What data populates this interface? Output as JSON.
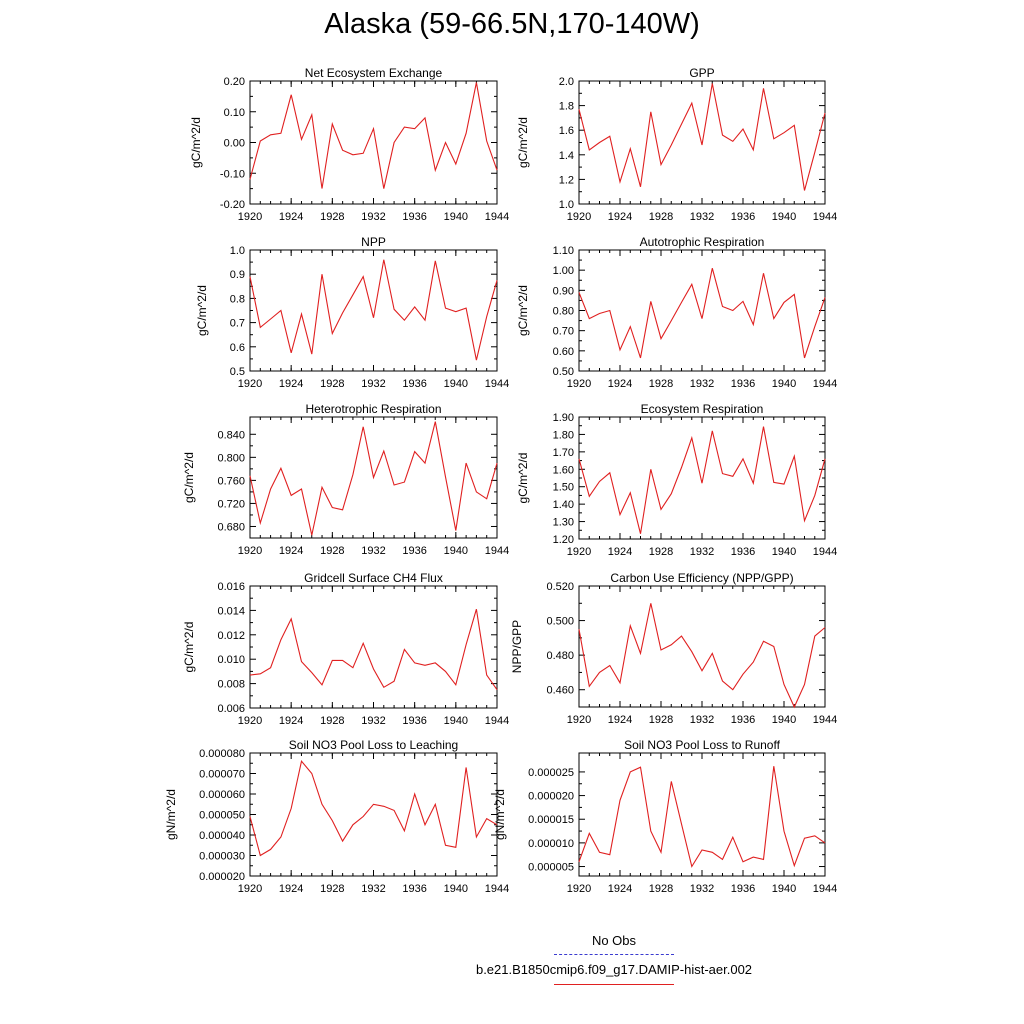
{
  "title": "Alaska (59-66.5N,170-140W)",
  "legend": {
    "obs_label": "No Obs",
    "obs_color": "#3b3bd0",
    "run_label": "b.e21.B1850cmip6.f09_g17.DAMIP-hist-aer.002",
    "run_color": "#e02020"
  },
  "chart_data": [
    {
      "type": "line",
      "title": "Net Ecosystem Exchange",
      "ylabel": "gC/m^2/d",
      "xlim": [
        1920,
        1944
      ],
      "xticks": [
        "1920",
        "1924",
        "1928",
        "1932",
        "1936",
        "1940",
        "1944"
      ],
      "ylim": [
        -0.2,
        0.2
      ],
      "yticks": [
        "0.20",
        "0.10",
        "0.00",
        "-0.10",
        "-0.20"
      ],
      "x": [
        1920,
        1921,
        1922,
        1923,
        1924,
        1925,
        1926,
        1927,
        1928,
        1929,
        1930,
        1931,
        1932,
        1933,
        1934,
        1935,
        1936,
        1937,
        1938,
        1939,
        1940,
        1941,
        1942,
        1943,
        1944
      ],
      "values": [
        -0.12,
        0.005,
        0.025,
        0.03,
        0.155,
        0.01,
        0.09,
        -0.15,
        0.06,
        -0.025,
        -0.04,
        -0.035,
        0.045,
        -0.15,
        0.0,
        0.05,
        0.045,
        0.08,
        -0.09,
        0.0,
        -0.07,
        0.03,
        0.195,
        0.005,
        -0.09
      ]
    },
    {
      "type": "line",
      "title": "GPP",
      "ylabel": "gC/m^2/d",
      "xlim": [
        1920,
        1944
      ],
      "xticks": [
        "1920",
        "1924",
        "1928",
        "1932",
        "1936",
        "1940",
        "1944"
      ],
      "ylim": [
        1.0,
        2.0
      ],
      "yticks": [
        "2.0",
        "1.8",
        "1.6",
        "1.4",
        "1.2",
        "1.0"
      ],
      "x": [
        1920,
        1921,
        1922,
        1923,
        1924,
        1925,
        1926,
        1927,
        1928,
        1929,
        1930,
        1931,
        1932,
        1933,
        1934,
        1935,
        1936,
        1937,
        1938,
        1939,
        1940,
        1941,
        1942,
        1943,
        1944
      ],
      "values": [
        1.77,
        1.44,
        1.5,
        1.55,
        1.18,
        1.45,
        1.14,
        1.75,
        1.32,
        1.48,
        1.65,
        1.82,
        1.48,
        1.98,
        1.56,
        1.51,
        1.61,
        1.44,
        1.94,
        1.53,
        1.58,
        1.64,
        1.11,
        1.42,
        1.74
      ]
    },
    {
      "type": "line",
      "title": "NPP",
      "ylabel": "gC/m^2/d",
      "xlim": [
        1920,
        1944
      ],
      "xticks": [
        "1920",
        "1924",
        "1928",
        "1932",
        "1936",
        "1940",
        "1944"
      ],
      "ylim": [
        0.5,
        1.0
      ],
      "yticks": [
        "1.0",
        "0.9",
        "0.8",
        "0.7",
        "0.6",
        "0.5"
      ],
      "x": [
        1920,
        1921,
        1922,
        1923,
        1924,
        1925,
        1926,
        1927,
        1928,
        1929,
        1930,
        1931,
        1932,
        1933,
        1934,
        1935,
        1936,
        1937,
        1938,
        1939,
        1940,
        1941,
        1942,
        1943,
        1944
      ],
      "values": [
        0.89,
        0.68,
        0.715,
        0.75,
        0.575,
        0.735,
        0.57,
        0.9,
        0.655,
        0.74,
        0.815,
        0.89,
        0.72,
        0.96,
        0.755,
        0.71,
        0.765,
        0.71,
        0.955,
        0.76,
        0.745,
        0.76,
        0.545,
        0.725,
        0.875
      ]
    },
    {
      "type": "line",
      "title": "Autotrophic Respiration",
      "ylabel": "gC/m^2/d",
      "xlim": [
        1920,
        1944
      ],
      "xticks": [
        "1920",
        "1924",
        "1928",
        "1932",
        "1936",
        "1940",
        "1944"
      ],
      "ylim": [
        0.5,
        1.1
      ],
      "yticks": [
        "1.10",
        "1.00",
        "0.90",
        "0.80",
        "0.70",
        "0.60",
        "0.50"
      ],
      "x": [
        1920,
        1921,
        1922,
        1923,
        1924,
        1925,
        1926,
        1927,
        1928,
        1929,
        1930,
        1931,
        1932,
        1933,
        1934,
        1935,
        1936,
        1937,
        1938,
        1939,
        1940,
        1941,
        1942,
        1943,
        1944
      ],
      "values": [
        0.89,
        0.76,
        0.785,
        0.8,
        0.605,
        0.72,
        0.565,
        0.845,
        0.66,
        0.75,
        0.84,
        0.93,
        0.76,
        1.01,
        0.82,
        0.8,
        0.845,
        0.73,
        0.985,
        0.76,
        0.84,
        0.88,
        0.565,
        0.72,
        0.865
      ]
    },
    {
      "type": "line",
      "title": "Heterotrophic Respiration",
      "ylabel": "gC/m^2/d",
      "xlim": [
        1920,
        1944
      ],
      "xticks": [
        "1920",
        "1924",
        "1928",
        "1932",
        "1936",
        "1940",
        "1944"
      ],
      "ylim": [
        0.66,
        0.87
      ],
      "yticks": [
        "0.840",
        "0.800",
        "0.760",
        "0.720",
        "0.680"
      ],
      "yticks_values": [
        0.84,
        0.8,
        0.76,
        0.72,
        0.68
      ],
      "x": [
        1920,
        1921,
        1922,
        1923,
        1924,
        1925,
        1926,
        1927,
        1928,
        1929,
        1930,
        1931,
        1932,
        1933,
        1934,
        1935,
        1936,
        1937,
        1938,
        1939,
        1940,
        1941,
        1942,
        1943,
        1944
      ],
      "values": [
        0.768,
        0.686,
        0.745,
        0.781,
        0.734,
        0.745,
        0.665,
        0.748,
        0.713,
        0.709,
        0.77,
        0.853,
        0.765,
        0.811,
        0.752,
        0.757,
        0.81,
        0.79,
        0.862,
        0.766,
        0.673,
        0.79,
        0.74,
        0.728,
        0.79
      ]
    },
    {
      "type": "line",
      "title": "Ecosystem Respiration",
      "ylabel": "gC/m^2/d",
      "xlim": [
        1920,
        1944
      ],
      "xticks": [
        "1920",
        "1924",
        "1928",
        "1932",
        "1936",
        "1940",
        "1944"
      ],
      "ylim": [
        1.2,
        1.9
      ],
      "yticks": [
        "1.90",
        "1.80",
        "1.70",
        "1.60",
        "1.50",
        "1.40",
        "1.30",
        "1.20"
      ],
      "x": [
        1920,
        1921,
        1922,
        1923,
        1924,
        1925,
        1926,
        1927,
        1928,
        1929,
        1930,
        1931,
        1932,
        1933,
        1934,
        1935,
        1936,
        1937,
        1938,
        1939,
        1940,
        1941,
        1942,
        1943,
        1944
      ],
      "values": [
        1.66,
        1.445,
        1.53,
        1.58,
        1.34,
        1.465,
        1.23,
        1.6,
        1.37,
        1.46,
        1.61,
        1.78,
        1.52,
        1.82,
        1.575,
        1.56,
        1.66,
        1.52,
        1.845,
        1.525,
        1.515,
        1.675,
        1.305,
        1.45,
        1.66
      ]
    },
    {
      "type": "line",
      "title": "Gridcell Surface CH4 Flux",
      "ylabel": "gC/m^2/d",
      "xlim": [
        1920,
        1944
      ],
      "xticks": [
        "1920",
        "1924",
        "1928",
        "1932",
        "1936",
        "1940",
        "1944"
      ],
      "ylim": [
        0.006,
        0.016
      ],
      "yticks": [
        "0.016",
        "0.014",
        "0.012",
        "0.010",
        "0.008",
        "0.006"
      ],
      "x": [
        1920,
        1921,
        1922,
        1923,
        1924,
        1925,
        1926,
        1927,
        1928,
        1929,
        1930,
        1931,
        1932,
        1933,
        1934,
        1935,
        1936,
        1937,
        1938,
        1939,
        1940,
        1941,
        1942,
        1943,
        1944
      ],
      "values": [
        0.0087,
        0.0088,
        0.0093,
        0.0116,
        0.0133,
        0.0098,
        0.0089,
        0.0079,
        0.0099,
        0.0099,
        0.0093,
        0.0113,
        0.0092,
        0.0077,
        0.0082,
        0.0108,
        0.0097,
        0.0095,
        0.0097,
        0.009,
        0.0079,
        0.0112,
        0.0141,
        0.0087,
        0.0075
      ]
    },
    {
      "type": "line",
      "title": "Carbon Use Efficiency (NPP/GPP)",
      "ylabel": "NPP/GPP",
      "xlim": [
        1920,
        1944
      ],
      "xticks": [
        "1920",
        "1924",
        "1928",
        "1932",
        "1936",
        "1940",
        "1944"
      ],
      "ylim": [
        0.45,
        0.52
      ],
      "yticks": [
        "0.520",
        "0.500",
        "0.480",
        "0.460"
      ],
      "yticks_values": [
        0.52,
        0.5,
        0.48,
        0.46
      ],
      "x": [
        1920,
        1921,
        1922,
        1923,
        1924,
        1925,
        1926,
        1927,
        1928,
        1929,
        1930,
        1931,
        1932,
        1933,
        1934,
        1935,
        1936,
        1937,
        1938,
        1939,
        1940,
        1941,
        1942,
        1943,
        1944
      ],
      "values": [
        0.495,
        0.462,
        0.47,
        0.474,
        0.464,
        0.497,
        0.481,
        0.51,
        0.483,
        0.486,
        0.491,
        0.482,
        0.471,
        0.481,
        0.465,
        0.46,
        0.469,
        0.476,
        0.488,
        0.485,
        0.463,
        0.45,
        0.463,
        0.491,
        0.496
      ]
    },
    {
      "type": "line",
      "title": "Soil NO3 Pool Loss to Leaching",
      "ylabel": "gN/m^2/d",
      "xlim": [
        1920,
        1944
      ],
      "xticks": [
        "1920",
        "1924",
        "1928",
        "1932",
        "1936",
        "1940",
        "1944"
      ],
      "ylim": [
        2e-05,
        8e-05
      ],
      "yticks": [
        "0.000080",
        "0.000070",
        "0.000060",
        "0.000050",
        "0.000040",
        "0.000030",
        "0.000020"
      ],
      "x": [
        1920,
        1921,
        1922,
        1923,
        1924,
        1925,
        1926,
        1927,
        1928,
        1929,
        1930,
        1931,
        1932,
        1933,
        1934,
        1935,
        1936,
        1937,
        1938,
        1939,
        1940,
        1941,
        1942,
        1943,
        1944
      ],
      "values": [
        4.9e-05,
        3e-05,
        3.3e-05,
        3.9e-05,
        5.3e-05,
        7.6e-05,
        7e-05,
        5.5e-05,
        4.7e-05,
        3.7e-05,
        4.5e-05,
        4.9e-05,
        5.5e-05,
        5.4e-05,
        5.2e-05,
        4.2e-05,
        6e-05,
        4.5e-05,
        5.5e-05,
        3.5e-05,
        3.4e-05,
        7.3e-05,
        3.9e-05,
        4.8e-05,
        4.5e-05
      ]
    },
    {
      "type": "line",
      "title": "Soil NO3 Pool Loss to Runoff",
      "ylabel": "gN/m^2/d",
      "xlim": [
        1920,
        1944
      ],
      "xticks": [
        "1920",
        "1924",
        "1928",
        "1932",
        "1936",
        "1940",
        "1944"
      ],
      "ylim": [
        3e-06,
        2.9e-05
      ],
      "yticks": [
        "0.000025",
        "0.000020",
        "0.000015",
        "0.000010",
        "0.000005"
      ],
      "yticks_values": [
        2.5e-05,
        2e-05,
        1.5e-05,
        1e-05,
        5e-06
      ],
      "x": [
        1920,
        1921,
        1922,
        1923,
        1924,
        1925,
        1926,
        1927,
        1928,
        1929,
        1930,
        1931,
        1932,
        1933,
        1934,
        1935,
        1936,
        1937,
        1938,
        1939,
        1940,
        1941,
        1942,
        1943,
        1944
      ],
      "values": [
        6e-06,
        1.2e-05,
        8e-06,
        7.5e-06,
        1.9e-05,
        2.5e-05,
        2.6e-05,
        1.25e-05,
        8e-06,
        2.3e-05,
        1.4e-05,
        5e-06,
        8.5e-06,
        8e-06,
        6.5e-06,
        1.12e-05,
        6e-06,
        7e-06,
        6.5e-06,
        2.62e-05,
        1.25e-05,
        5.2e-06,
        1.1e-05,
        1.15e-05,
        1e-05
      ]
    }
  ]
}
